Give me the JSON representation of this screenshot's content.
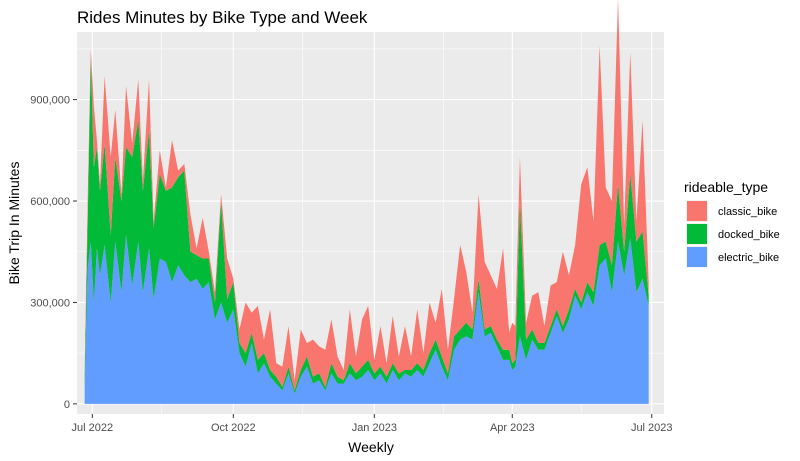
{
  "chart_data": {
    "type": "area",
    "title": "Rides Minutes by Bike Type and Week",
    "xlabel": "Weekly",
    "ylabel": "Bike Trip In Minutes",
    "x_ticks": [
      "Jul 2022",
      "Oct 2022",
      "Jan 2023",
      "Apr 2023",
      "Jul 2023"
    ],
    "y_ticks": [
      "0",
      "300,000",
      "600,000",
      "900,000"
    ],
    "xlim": [
      "2022-06-21",
      "2023-07-09"
    ],
    "ylim": [
      -30000,
      1100000
    ],
    "grid": true,
    "legend_position": "right",
    "legend_title": "rideable_type",
    "colors": {
      "panel": "#EBEBEB",
      "grid": "#FFFFFF",
      "classic_bike": "#F8766D",
      "docked_bike": "#00BA38",
      "electric_bike": "#619CFF"
    },
    "x": [
      "2022-06-26",
      "2022-06-28",
      "2022-06-30",
      "2022-07-02",
      "2022-07-04",
      "2022-07-06",
      "2022-07-09",
      "2022-07-13",
      "2022-07-16",
      "2022-07-20",
      "2022-07-23",
      "2022-07-27",
      "2022-07-31",
      "2022-08-03",
      "2022-08-07",
      "2022-08-10",
      "2022-08-14",
      "2022-08-18",
      "2022-08-22",
      "2022-08-26",
      "2022-08-30",
      "2022-09-03",
      "2022-09-07",
      "2022-09-11",
      "2022-09-15",
      "2022-09-19",
      "2022-09-23",
      "2022-09-27",
      "2022-10-01",
      "2022-10-05",
      "2022-10-09",
      "2022-10-13",
      "2022-10-17",
      "2022-10-21",
      "2022-10-25",
      "2022-10-29",
      "2022-11-02",
      "2022-11-06",
      "2022-11-10",
      "2022-11-14",
      "2022-11-18",
      "2022-11-22",
      "2022-11-26",
      "2022-11-30",
      "2022-12-04",
      "2022-12-08",
      "2022-12-12",
      "2022-12-16",
      "2022-12-20",
      "2022-12-24",
      "2022-12-28",
      "2023-01-01",
      "2023-01-05",
      "2023-01-09",
      "2023-01-13",
      "2023-01-17",
      "2023-01-21",
      "2023-01-25",
      "2023-01-29",
      "2023-02-02",
      "2023-02-06",
      "2023-02-10",
      "2023-02-14",
      "2023-02-18",
      "2023-02-22",
      "2023-02-26",
      "2023-03-02",
      "2023-03-06",
      "2023-03-10",
      "2023-03-14",
      "2023-03-18",
      "2023-03-22",
      "2023-03-26",
      "2023-03-30",
      "2023-04-01",
      "2023-04-03",
      "2023-04-06",
      "2023-04-10",
      "2023-04-14",
      "2023-04-18",
      "2023-04-22",
      "2023-04-26",
      "2023-04-30",
      "2023-05-04",
      "2023-05-08",
      "2023-05-12",
      "2023-05-16",
      "2023-05-20",
      "2023-05-24",
      "2023-05-28",
      "2023-06-01",
      "2023-06-05",
      "2023-06-09",
      "2023-06-13",
      "2023-06-17",
      "2023-06-21",
      "2023-06-25",
      "2023-06-29"
    ],
    "series": [
      {
        "name": "electric_bike",
        "values": [
          50000,
          400000,
          480000,
          300000,
          460000,
          380000,
          470000,
          300000,
          480000,
          330000,
          500000,
          350000,
          480000,
          330000,
          460000,
          310000,
          430000,
          420000,
          360000,
          410000,
          380000,
          360000,
          370000,
          340000,
          360000,
          250000,
          300000,
          240000,
          280000,
          150000,
          110000,
          180000,
          90000,
          120000,
          80000,
          60000,
          40000,
          90000,
          30000,
          80000,
          110000,
          60000,
          70000,
          40000,
          90000,
          60000,
          60000,
          90000,
          70000,
          80000,
          100000,
          70000,
          90000,
          60000,
          100000,
          70000,
          90000,
          80000,
          100000,
          80000,
          120000,
          160000,
          110000,
          70000,
          160000,
          190000,
          200000,
          190000,
          330000,
          200000,
          210000,
          170000,
          130000,
          130000,
          100000,
          110000,
          200000,
          130000,
          190000,
          160000,
          160000,
          210000,
          260000,
          210000,
          250000,
          320000,
          280000,
          330000,
          290000,
          410000,
          430000,
          330000,
          480000,
          380000,
          490000,
          330000,
          370000,
          290000
        ]
      },
      {
        "name": "docked_bike",
        "values": [
          30000,
          150000,
          550000,
          400000,
          300000,
          250000,
          300000,
          200000,
          250000,
          270000,
          260000,
          380000,
          360000,
          300000,
          350000,
          210000,
          250000,
          210000,
          280000,
          260000,
          310000,
          90000,
          70000,
          90000,
          70000,
          50000,
          300000,
          70000,
          80000,
          30000,
          40000,
          30000,
          40000,
          30000,
          20000,
          20000,
          10000,
          20000,
          10000,
          20000,
          30000,
          20000,
          20000,
          10000,
          30000,
          20000,
          10000,
          30000,
          20000,
          30000,
          30000,
          20000,
          20000,
          20000,
          20000,
          20000,
          10000,
          20000,
          20000,
          20000,
          30000,
          30000,
          30000,
          20000,
          40000,
          30000,
          40000,
          30000,
          40000,
          20000,
          20000,
          20000,
          30000,
          30000,
          20000,
          20000,
          400000,
          60000,
          30000,
          20000,
          20000,
          20000,
          20000,
          20000,
          30000,
          20000,
          20000,
          30000,
          40000,
          60000,
          50000,
          80000,
          170000,
          70000,
          190000,
          150000,
          140000,
          30000
        ]
      },
      {
        "name": "classic_bike",
        "values": [
          20000,
          60000,
          20000,
          180000,
          20000,
          20000,
          200000,
          230000,
          140000,
          20000,
          180000,
          40000,
          120000,
          30000,
          150000,
          20000,
          70000,
          10000,
          140000,
          20000,
          20000,
          110000,
          20000,
          120000,
          20000,
          30000,
          20000,
          120000,
          10000,
          40000,
          150000,
          60000,
          160000,
          40000,
          180000,
          40000,
          60000,
          120000,
          30000,
          120000,
          40000,
          110000,
          80000,
          110000,
          130000,
          60000,
          30000,
          160000,
          50000,
          140000,
          160000,
          40000,
          120000,
          40000,
          140000,
          50000,
          130000,
          40000,
          160000,
          50000,
          150000,
          50000,
          200000,
          70000,
          110000,
          250000,
          150000,
          50000,
          250000,
          200000,
          150000,
          150000,
          300000,
          50000,
          120000,
          100000,
          130000,
          50000,
          100000,
          150000,
          50000,
          120000,
          80000,
          220000,
          100000,
          130000,
          350000,
          340000,
          210000,
          590000,
          160000,
          190000,
          550000,
          80000,
          360000,
          60000,
          330000,
          40000
        ]
      }
    ],
    "stack_order": [
      "electric_bike",
      "docked_bike",
      "classic_bike"
    ],
    "legend": [
      {
        "label": "classic_bike",
        "color": "#F8766D"
      },
      {
        "label": "docked_bike",
        "color": "#00BA38"
      },
      {
        "label": "electric_bike",
        "color": "#619CFF"
      }
    ]
  }
}
